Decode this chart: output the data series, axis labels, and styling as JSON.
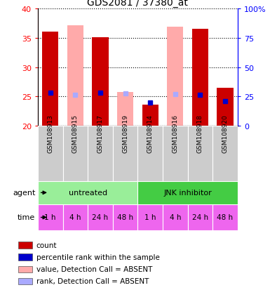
{
  "title": "GDS2081 / 37380_at",
  "samples": [
    "GSM108913",
    "GSM108915",
    "GSM108917",
    "GSM108919",
    "GSM108914",
    "GSM108916",
    "GSM108918",
    "GSM108920"
  ],
  "time_labels": [
    "1 h",
    "4 h",
    "24 h",
    "48 h",
    "1 h",
    "4 h",
    "24 h",
    "48 h"
  ],
  "ylim_left": [
    20,
    40
  ],
  "ylim_right": [
    0,
    100
  ],
  "yticks_left": [
    20,
    25,
    30,
    35,
    40
  ],
  "yticks_right": [
    0,
    25,
    50,
    75,
    100
  ],
  "ytick_labels_right": [
    "0",
    "25",
    "50",
    "75",
    "100%"
  ],
  "red_bars": [
    36.1,
    null,
    35.1,
    null,
    23.6,
    null,
    36.5,
    26.5
  ],
  "pink_bars": [
    null,
    37.2,
    null,
    25.8,
    null,
    36.9,
    null,
    null
  ],
  "blue_markers": [
    25.7,
    null,
    25.7,
    null,
    24.0,
    null,
    25.3,
    24.2
  ],
  "lightblue_markers": [
    null,
    25.3,
    null,
    25.5,
    null,
    25.4,
    null,
    null
  ],
  "color_red": "#cc0000",
  "color_blue": "#0000cc",
  "color_pink": "#ffaaaa",
  "color_lightblue": "#aaaaff",
  "color_agent_untreated": "#99ee99",
  "color_agent_jnk": "#44cc44",
  "color_time": "#ee66ee",
  "color_sample_bg": "#cccccc",
  "legend_items": [
    {
      "color": "#cc0000",
      "label": "count"
    },
    {
      "color": "#0000cc",
      "label": "percentile rank within the sample"
    },
    {
      "color": "#ffaaaa",
      "label": "value, Detection Call = ABSENT"
    },
    {
      "color": "#aaaaff",
      "label": "rank, Detection Call = ABSENT"
    }
  ]
}
